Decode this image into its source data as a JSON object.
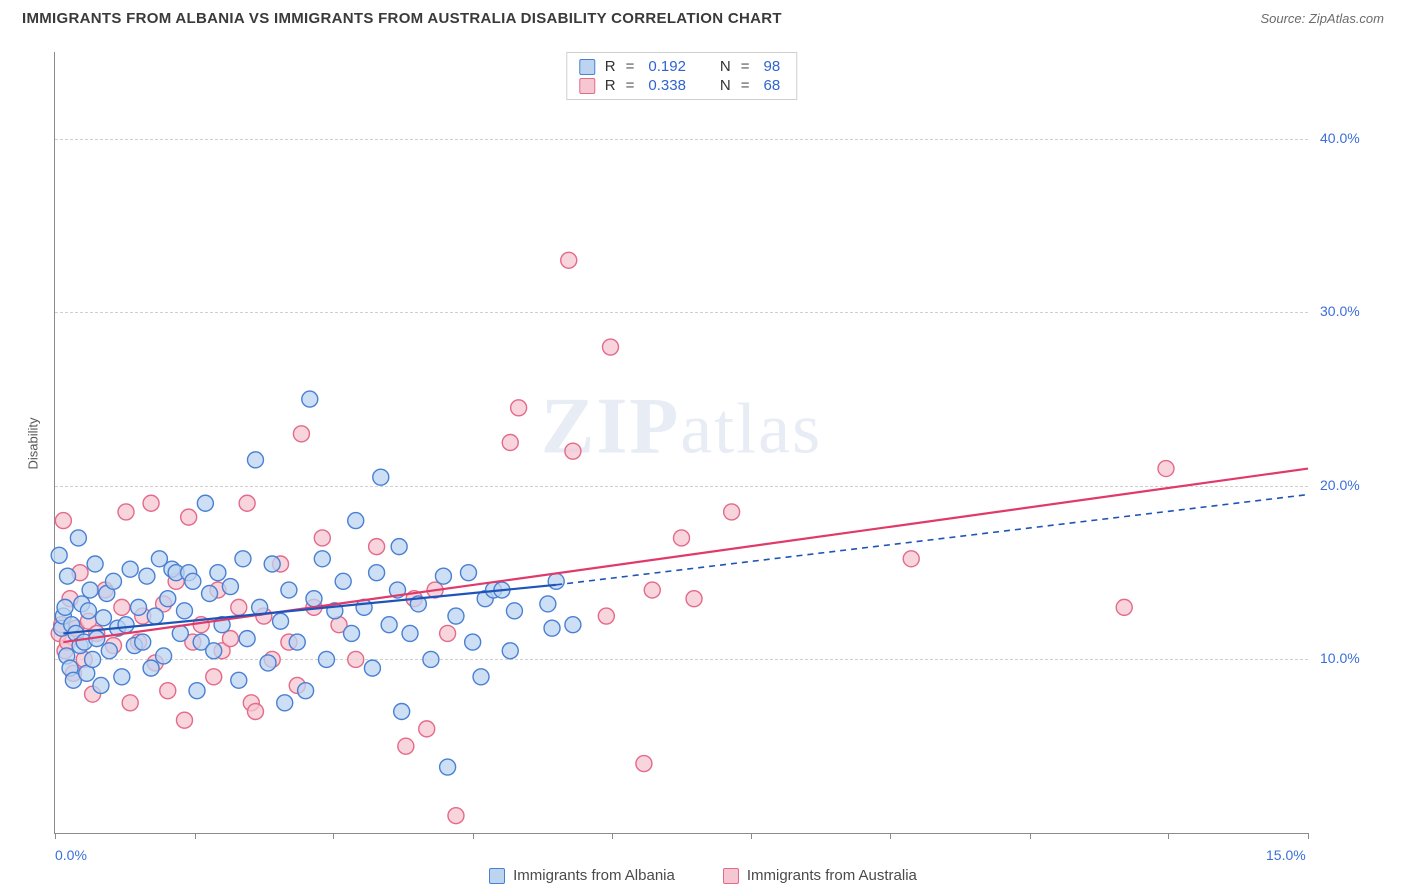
{
  "header": {
    "title": "IMMIGRANTS FROM ALBANIA VS IMMIGRANTS FROM AUSTRALIA DISABILITY CORRELATION CHART",
    "source_prefix": "Source: ",
    "source_name": "ZipAtlas.com"
  },
  "watermark": {
    "zip": "ZIP",
    "atlas": "atlas"
  },
  "chart": {
    "type": "scatter",
    "ylabel": "Disability",
    "xlim": [
      0,
      15
    ],
    "ylim": [
      0,
      45
    ],
    "x_ticks": [
      0,
      1.67,
      3.33,
      5,
      6.67,
      8.33,
      10,
      11.67,
      13.33,
      15
    ],
    "x_tick_labels_shown": {
      "0": "0.0%",
      "15": "15.0%"
    },
    "y_gridlines": [
      10,
      20,
      30,
      40
    ],
    "y_tick_labels": {
      "10": "10.0%",
      "20": "20.0%",
      "30": "30.0%",
      "40": "40.0%"
    },
    "background_color": "#ffffff",
    "grid_color": "#d0d0d0",
    "axis_color": "#8a8a8a",
    "tick_label_color": "#3a6fd8",
    "marker_radius": 8,
    "marker_stroke_width": 1.4,
    "series": {
      "albania": {
        "label": "Immigrants from Albania",
        "fill": "#bcd4f0",
        "stroke": "#4a80d4",
        "R": "0.192",
        "N": "98",
        "trend_solid": {
          "x1": 0.1,
          "y1": 11.5,
          "x2": 6.0,
          "y2": 14.3,
          "color": "#1e54b8",
          "width": 2.2
        },
        "trend_dash": {
          "x1": 6.0,
          "y1": 14.3,
          "x2": 15.0,
          "y2": 19.5,
          "color": "#1e54b8",
          "width": 1.6,
          "dash": "6,5"
        },
        "points": [
          [
            0.05,
            16.0
          ],
          [
            0.08,
            11.8
          ],
          [
            0.1,
            12.5
          ],
          [
            0.12,
            13.0
          ],
          [
            0.14,
            10.2
          ],
          [
            0.15,
            14.8
          ],
          [
            0.18,
            9.5
          ],
          [
            0.2,
            12.0
          ],
          [
            0.22,
            8.8
          ],
          [
            0.25,
            11.5
          ],
          [
            0.28,
            17.0
          ],
          [
            0.3,
            10.8
          ],
          [
            0.32,
            13.2
          ],
          [
            0.35,
            11.0
          ],
          [
            0.38,
            9.2
          ],
          [
            0.4,
            12.8
          ],
          [
            0.42,
            14.0
          ],
          [
            0.45,
            10.0
          ],
          [
            0.48,
            15.5
          ],
          [
            0.5,
            11.2
          ],
          [
            0.55,
            8.5
          ],
          [
            0.58,
            12.4
          ],
          [
            0.62,
            13.8
          ],
          [
            0.65,
            10.5
          ],
          [
            0.7,
            14.5
          ],
          [
            0.75,
            11.8
          ],
          [
            0.8,
            9.0
          ],
          [
            0.85,
            12.0
          ],
          [
            0.9,
            15.2
          ],
          [
            0.95,
            10.8
          ],
          [
            1.0,
            13.0
          ],
          [
            1.05,
            11.0
          ],
          [
            1.1,
            14.8
          ],
          [
            1.15,
            9.5
          ],
          [
            1.2,
            12.5
          ],
          [
            1.25,
            15.8
          ],
          [
            1.3,
            10.2
          ],
          [
            1.35,
            13.5
          ],
          [
            1.4,
            15.2
          ],
          [
            1.45,
            15.0
          ],
          [
            1.5,
            11.5
          ],
          [
            1.55,
            12.8
          ],
          [
            1.6,
            15.0
          ],
          [
            1.65,
            14.5
          ],
          [
            1.7,
            8.2
          ],
          [
            1.75,
            11.0
          ],
          [
            1.8,
            19.0
          ],
          [
            1.85,
            13.8
          ],
          [
            1.9,
            10.5
          ],
          [
            1.95,
            15.0
          ],
          [
            2.0,
            12.0
          ],
          [
            2.1,
            14.2
          ],
          [
            2.2,
            8.8
          ],
          [
            2.25,
            15.8
          ],
          [
            2.3,
            11.2
          ],
          [
            2.4,
            21.5
          ],
          [
            2.45,
            13.0
          ],
          [
            2.55,
            9.8
          ],
          [
            2.6,
            15.5
          ],
          [
            2.7,
            12.2
          ],
          [
            2.75,
            7.5
          ],
          [
            2.8,
            14.0
          ],
          [
            2.9,
            11.0
          ],
          [
            3.0,
            8.2
          ],
          [
            3.05,
            25.0
          ],
          [
            3.1,
            13.5
          ],
          [
            3.2,
            15.8
          ],
          [
            3.25,
            10.0
          ],
          [
            3.35,
            12.8
          ],
          [
            3.45,
            14.5
          ],
          [
            3.55,
            11.5
          ],
          [
            3.6,
            18.0
          ],
          [
            3.7,
            13.0
          ],
          [
            3.8,
            9.5
          ],
          [
            3.85,
            15.0
          ],
          [
            3.9,
            20.5
          ],
          [
            4.0,
            12.0
          ],
          [
            4.1,
            14.0
          ],
          [
            4.12,
            16.5
          ],
          [
            4.15,
            7.0
          ],
          [
            4.25,
            11.5
          ],
          [
            4.35,
            13.2
          ],
          [
            4.5,
            10.0
          ],
          [
            4.65,
            14.8
          ],
          [
            4.7,
            3.8
          ],
          [
            4.8,
            12.5
          ],
          [
            4.95,
            15.0
          ],
          [
            5.0,
            11.0
          ],
          [
            5.1,
            9.0
          ],
          [
            5.15,
            13.5
          ],
          [
            5.25,
            14.0
          ],
          [
            5.35,
            14.0
          ],
          [
            5.45,
            10.5
          ],
          [
            5.5,
            12.8
          ],
          [
            5.9,
            13.2
          ],
          [
            5.95,
            11.8
          ],
          [
            6.0,
            14.5
          ],
          [
            6.2,
            12.0
          ]
        ]
      },
      "australia": {
        "label": "Immigrants from Australia",
        "fill": "#f6c6d2",
        "stroke": "#e46a8a",
        "R": "0.338",
        "N": "68",
        "trend_solid": {
          "x1": 0.1,
          "y1": 11.0,
          "x2": 15.0,
          "y2": 21.0,
          "color": "#e03a6a",
          "width": 2.2
        },
        "points": [
          [
            0.05,
            11.5
          ],
          [
            0.08,
            12.0
          ],
          [
            0.1,
            18.0
          ],
          [
            0.12,
            10.5
          ],
          [
            0.15,
            11.0
          ],
          [
            0.18,
            13.5
          ],
          [
            0.22,
            9.2
          ],
          [
            0.25,
            11.8
          ],
          [
            0.3,
            15.0
          ],
          [
            0.35,
            10.0
          ],
          [
            0.4,
            12.2
          ],
          [
            0.45,
            8.0
          ],
          [
            0.5,
            11.5
          ],
          [
            0.6,
            14.0
          ],
          [
            0.7,
            10.8
          ],
          [
            0.8,
            13.0
          ],
          [
            0.85,
            18.5
          ],
          [
            0.9,
            7.5
          ],
          [
            1.0,
            11.0
          ],
          [
            1.05,
            12.5
          ],
          [
            1.15,
            19.0
          ],
          [
            1.2,
            9.8
          ],
          [
            1.3,
            13.2
          ],
          [
            1.35,
            8.2
          ],
          [
            1.45,
            14.5
          ],
          [
            1.55,
            6.5
          ],
          [
            1.6,
            18.2
          ],
          [
            1.65,
            11.0
          ],
          [
            1.75,
            12.0
          ],
          [
            1.9,
            9.0
          ],
          [
            1.95,
            14.0
          ],
          [
            2.0,
            10.5
          ],
          [
            2.1,
            11.2
          ],
          [
            2.2,
            13.0
          ],
          [
            2.3,
            19.0
          ],
          [
            2.35,
            7.5
          ],
          [
            2.4,
            7.0
          ],
          [
            2.5,
            12.5
          ],
          [
            2.6,
            10.0
          ],
          [
            2.7,
            15.5
          ],
          [
            2.8,
            11.0
          ],
          [
            2.9,
            8.5
          ],
          [
            2.95,
            23.0
          ],
          [
            3.1,
            13.0
          ],
          [
            3.2,
            17.0
          ],
          [
            3.4,
            12.0
          ],
          [
            3.6,
            10.0
          ],
          [
            3.85,
            16.5
          ],
          [
            4.2,
            5.0
          ],
          [
            4.3,
            13.5
          ],
          [
            4.45,
            6.0
          ],
          [
            4.55,
            14.0
          ],
          [
            4.7,
            11.5
          ],
          [
            4.8,
            1.0
          ],
          [
            5.45,
            22.5
          ],
          [
            5.55,
            24.5
          ],
          [
            6.15,
            33.0
          ],
          [
            6.2,
            22.0
          ],
          [
            6.6,
            12.5
          ],
          [
            6.65,
            28.0
          ],
          [
            7.05,
            4.0
          ],
          [
            7.15,
            14.0
          ],
          [
            7.5,
            17.0
          ],
          [
            7.65,
            13.5
          ],
          [
            8.1,
            18.5
          ],
          [
            10.25,
            15.8
          ],
          [
            12.8,
            13.0
          ],
          [
            13.3,
            21.0
          ]
        ]
      }
    },
    "legend_top": {
      "R_label": "R",
      "N_label": "N",
      "eq": "="
    }
  }
}
